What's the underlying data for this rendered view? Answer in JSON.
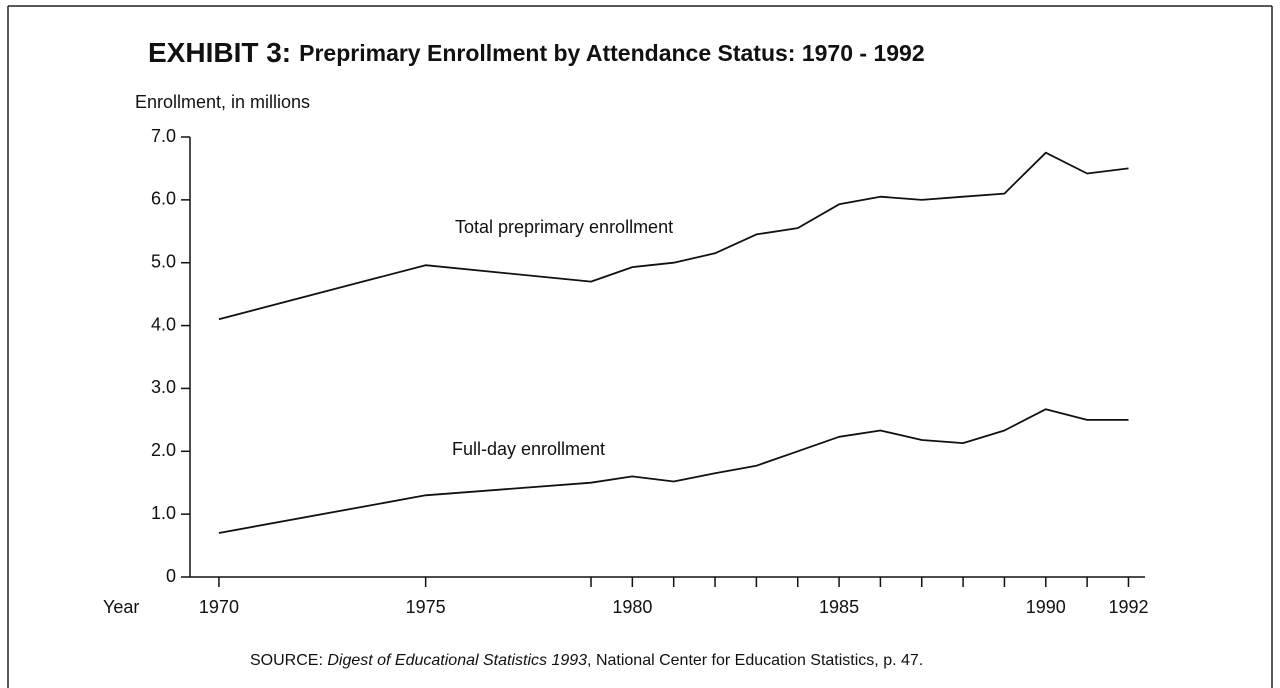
{
  "chart_data": {
    "type": "line",
    "exhibit": "EXHIBIT 3:",
    "title": "Preprimary Enrollment by Attendance Status: 1970 - 1992",
    "y_label": "Enrollment, in millions",
    "x_label": "Year",
    "x": [
      1970,
      1975,
      1979,
      1980,
      1981,
      1982,
      1983,
      1984,
      1985,
      1986,
      1987,
      1988,
      1989,
      1990,
      1991,
      1992
    ],
    "series": [
      {
        "name": "Total preprimary enrollment",
        "color": "#111111",
        "values": [
          4.1,
          4.96,
          4.7,
          4.93,
          5.0,
          5.15,
          5.45,
          5.55,
          5.93,
          6.05,
          6.0,
          6.05,
          6.1,
          6.75,
          6.42,
          6.5
        ]
      },
      {
        "name": "Full-day enrollment",
        "color": "#111111",
        "values": [
          0.7,
          1.3,
          1.5,
          1.6,
          1.52,
          1.65,
          1.77,
          2.0,
          2.23,
          2.33,
          2.18,
          2.13,
          2.33,
          2.67,
          2.5,
          2.5
        ]
      }
    ],
    "xlim": [
      1969.3,
      1992.4
    ],
    "xticks": [
      1970,
      1975,
      1980,
      1985,
      1990,
      1992
    ],
    "xminor": [
      1979,
      1981,
      1982,
      1983,
      1984,
      1986,
      1987,
      1988,
      1989,
      1991
    ],
    "ylim": [
      0,
      7
    ],
    "yticks": [
      0,
      {
        "value": 1,
        "label": "1.0"
      },
      {
        "value": 2,
        "label": "2.0"
      },
      {
        "value": 3,
        "label": "3.0"
      },
      {
        "value": 4,
        "label": "4.0"
      },
      {
        "value": 5,
        "label": "5.0"
      },
      {
        "value": 6,
        "label": "6.0"
      },
      {
        "value": 7,
        "label": "7.0"
      }
    ],
    "grid": false,
    "source": [
      "SOURCE: ",
      "Digest of Educational Statistics 1993",
      ",  National Center for Education Statistics, p. 47."
    ]
  }
}
